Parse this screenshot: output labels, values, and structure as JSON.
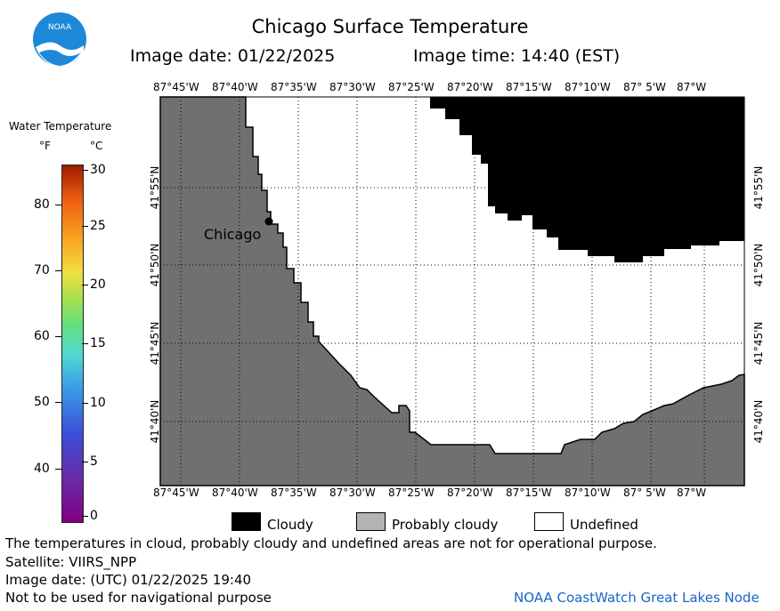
{
  "header": {
    "title": "Chicago Surface Temperature",
    "image_date": "Image date: 01/22/2025",
    "image_time": "Image time: 14:40 (EST)"
  },
  "logo": {
    "text": "NOAA"
  },
  "legend_colorbar": {
    "title": "Water Temperature",
    "unit_f": "°F",
    "unit_c": "°C",
    "f_ticks": [
      "80",
      "70",
      "60",
      "50",
      "40"
    ],
    "c_ticks": [
      "30",
      "25",
      "20",
      "15",
      "10",
      "5",
      "0"
    ]
  },
  "map": {
    "top_lon_labels": [
      "87°45'W",
      "87°40'W",
      "87°35'W",
      "87°30'W",
      "87°25'W",
      "87°20'W",
      "87°15'W",
      "87°10'W",
      "87° 5'W",
      "87°W"
    ],
    "bottom_lon_labels": [
      "87°45'W",
      "87°40'W",
      "87°35'W",
      "87°30'W",
      "87°25'W",
      "87°20'W",
      "87°15'W",
      "87°10'W",
      "87° 5'W",
      "87°W"
    ],
    "left_lat_labels": [
      "41°55'N",
      "41°50'N",
      "41°45'N",
      "41°40'N"
    ],
    "right_lat_labels": [
      "41°55'N",
      "41°50'N",
      "41°45'N",
      "41°40'N"
    ],
    "city_label": "Chicago",
    "colors": {
      "land": "#707070",
      "cloudy": "#000000",
      "undefined": "#ffffff"
    }
  },
  "legend_categories": [
    {
      "label": "Cloudy",
      "color": "#000000"
    },
    {
      "label": "Probably cloudy",
      "color": "#b4b4b4"
    },
    {
      "label": "Undefined",
      "color": "#ffffff"
    }
  ],
  "footer": {
    "disclaimer": "The temperatures in cloud, probably cloudy and undefined areas are not for operational purpose.",
    "satellite": "Satellite: VIIRS_NPP",
    "utc_date": "Image date: (UTC) 01/22/2025  19:40",
    "nav_warning": "Not to be used for navigational purpose",
    "credit": "NOAA CoastWatch Great Lakes Node"
  }
}
